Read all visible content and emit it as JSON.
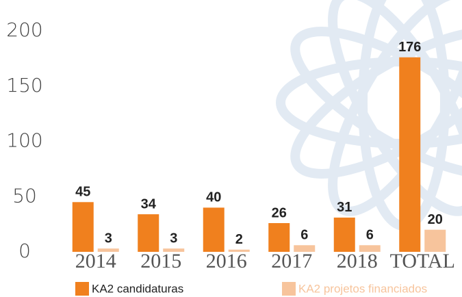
{
  "chart_data": {
    "type": "bar",
    "categories": [
      "2014",
      "2015",
      "2016",
      "2017",
      "2018",
      "TOTAL"
    ],
    "series": [
      {
        "name": "KA2 candidaturas",
        "color": "#f0801e",
        "values": [
          45,
          34,
          40,
          26,
          31,
          176
        ]
      },
      {
        "name": "KA2 projetos financiados",
        "color": "#f7c49c",
        "values": [
          3,
          3,
          2,
          6,
          6,
          20
        ]
      }
    ],
    "ylim": [
      0,
      200
    ],
    "yticks": [
      0,
      50,
      100,
      150,
      200
    ]
  }
}
